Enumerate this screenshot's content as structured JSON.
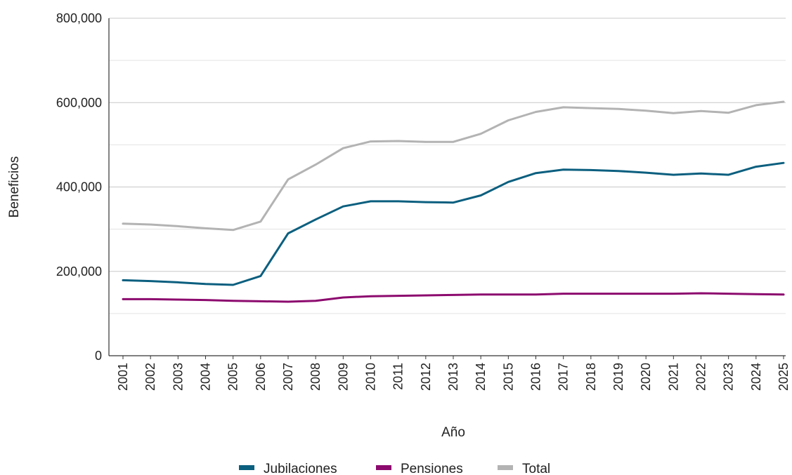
{
  "chart_data": {
    "type": "line",
    "title": "",
    "xlabel": "Año",
    "ylabel": "Beneficios",
    "ylim": [
      0,
      800000
    ],
    "y_ticks": [
      0,
      200000,
      400000,
      600000,
      800000
    ],
    "y_tick_labels": [
      "0",
      "200,000",
      "400,000",
      "600,000",
      "800,000"
    ],
    "grid": true,
    "legend_position": "bottom",
    "categories": [
      "2001",
      "2002",
      "2003",
      "2004",
      "2005",
      "2006",
      "2007",
      "2008",
      "2009",
      "2010",
      "2011",
      "2012",
      "2013",
      "2014",
      "2015",
      "2016",
      "2017",
      "2018",
      "2019",
      "2020",
      "2021",
      "2022",
      "2023",
      "2024",
      "2025"
    ],
    "series": [
      {
        "name": "Jubilaciones",
        "color": "#0b5f7f",
        "values": [
          179000,
          177000,
          174000,
          170000,
          168000,
          189000,
          290000,
          323000,
          354000,
          366000,
          366000,
          364000,
          363000,
          380000,
          412000,
          433000,
          441000,
          440000,
          438000,
          434000,
          429000,
          432000,
          429000,
          448000,
          457000
        ]
      },
      {
        "name": "Pensiones",
        "color": "#8c0a6e",
        "values": [
          134000,
          134000,
          133000,
          132000,
          130000,
          129000,
          128000,
          130000,
          138000,
          141000,
          142000,
          143000,
          144000,
          145000,
          145000,
          145000,
          147000,
          147000,
          147000,
          147000,
          147000,
          148000,
          147000,
          146000,
          145000
        ]
      },
      {
        "name": "Total",
        "color": "#b3b3b3",
        "values": [
          313000,
          311000,
          307000,
          302000,
          298000,
          318000,
          418000,
          453000,
          492000,
          508000,
          509000,
          507000,
          507000,
          526000,
          558000,
          578000,
          589000,
          587000,
          585000,
          581000,
          575000,
          580000,
          576000,
          594000,
          602000
        ]
      }
    ]
  }
}
